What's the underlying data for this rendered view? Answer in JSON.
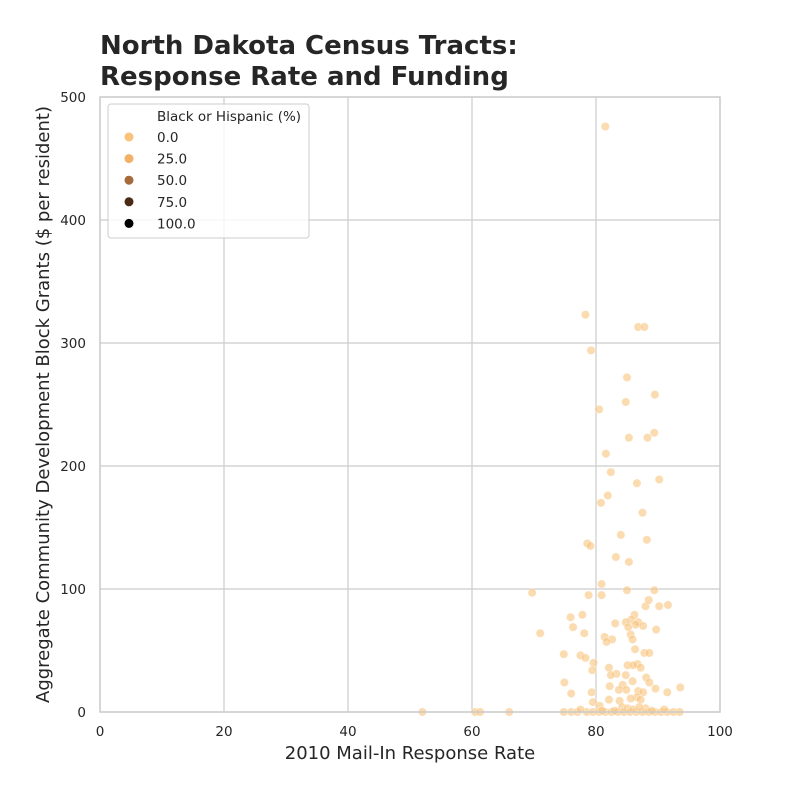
{
  "chart_data": {
    "type": "scatter",
    "title_line1": "North Dakota Census Tracts:",
    "title_line2": "Response Rate and Funding",
    "xlabel": "2010 Mail-In Response Rate",
    "ylabel": "Aggregate Community Development Block Grants ($ per resident)",
    "xlim": [
      0,
      100
    ],
    "ylim": [
      0,
      500
    ],
    "x_ticks": [
      "0",
      "20",
      "40",
      "60",
      "80",
      "100"
    ],
    "y_ticks": [
      "0",
      "100",
      "200",
      "300",
      "400",
      "500"
    ],
    "grid": true,
    "legend": {
      "title": "Black or Hispanic (%)",
      "placement": "top-left",
      "entries": [
        {
          "label": "0.0",
          "color": "#f9c37b"
        },
        {
          "label": "25.0",
          "color": "#f2b168"
        },
        {
          "label": "50.0",
          "color": "#a66b3a"
        },
        {
          "label": "75.0",
          "color": "#4a2a17"
        },
        {
          "label": "100.0",
          "color": "#000000"
        }
      ]
    },
    "point_color": "#f9c37b",
    "points": [
      [
        81.5,
        476
      ],
      [
        78.3,
        323
      ],
      [
        86.8,
        313
      ],
      [
        87.8,
        313
      ],
      [
        79.2,
        294
      ],
      [
        85.0,
        272
      ],
      [
        89.5,
        258
      ],
      [
        84.8,
        252
      ],
      [
        80.5,
        246
      ],
      [
        85.3,
        223
      ],
      [
        89.4,
        227
      ],
      [
        88.3,
        223
      ],
      [
        81.6,
        210
      ],
      [
        82.4,
        195
      ],
      [
        90.2,
        189
      ],
      [
        86.6,
        186
      ],
      [
        81.9,
        176
      ],
      [
        80.8,
        170
      ],
      [
        87.5,
        162
      ],
      [
        84.0,
        144
      ],
      [
        88.2,
        140
      ],
      [
        78.6,
        137
      ],
      [
        79.1,
        135
      ],
      [
        83.2,
        126
      ],
      [
        85.3,
        122
      ],
      [
        80.9,
        104
      ],
      [
        89.4,
        99
      ],
      [
        85.0,
        99
      ],
      [
        69.7,
        97
      ],
      [
        78.8,
        95
      ],
      [
        80.9,
        95
      ],
      [
        90.2,
        86
      ],
      [
        91.6,
        87
      ],
      [
        88.0,
        86
      ],
      [
        88.5,
        91
      ],
      [
        86.2,
        79
      ],
      [
        77.8,
        79
      ],
      [
        75.9,
        77
      ],
      [
        85.7,
        75
      ],
      [
        84.8,
        73
      ],
      [
        86.8,
        73
      ],
      [
        83.1,
        72
      ],
      [
        86.4,
        71
      ],
      [
        85.2,
        69
      ],
      [
        87.6,
        70
      ],
      [
        76.3,
        69
      ],
      [
        89.7,
        67
      ],
      [
        85.6,
        63
      ],
      [
        71.0,
        64
      ],
      [
        78.1,
        64
      ],
      [
        81.4,
        61
      ],
      [
        82.6,
        59
      ],
      [
        81.7,
        57
      ],
      [
        85.9,
        59
      ],
      [
        86.3,
        51
      ],
      [
        87.8,
        48
      ],
      [
        88.6,
        48
      ],
      [
        77.5,
        46
      ],
      [
        74.8,
        47
      ],
      [
        78.3,
        44
      ],
      [
        79.6,
        40
      ],
      [
        85.1,
        38
      ],
      [
        86.7,
        39
      ],
      [
        82.1,
        36
      ],
      [
        87.2,
        36
      ],
      [
        86.0,
        38
      ],
      [
        79.4,
        34
      ],
      [
        83.3,
        31
      ],
      [
        84.8,
        30
      ],
      [
        88.1,
        28
      ],
      [
        82.4,
        30
      ],
      [
        85.9,
        25
      ],
      [
        88.6,
        24
      ],
      [
        74.9,
        24
      ],
      [
        84.3,
        22
      ],
      [
        82.2,
        21
      ],
      [
        89.6,
        19
      ],
      [
        93.6,
        20
      ],
      [
        91.5,
        16
      ],
      [
        76.0,
        15
      ],
      [
        79.3,
        16
      ],
      [
        83.7,
        18
      ],
      [
        84.9,
        18
      ],
      [
        86.8,
        17
      ],
      [
        87.6,
        16
      ],
      [
        86.6,
        12
      ],
      [
        85.6,
        11
      ],
      [
        87.2,
        10
      ],
      [
        83.8,
        9
      ],
      [
        82.1,
        10
      ],
      [
        79.5,
        8
      ],
      [
        80.6,
        5
      ],
      [
        84.2,
        4
      ],
      [
        85.1,
        3
      ],
      [
        88.0,
        3
      ],
      [
        52.0,
        0
      ],
      [
        60.5,
        0
      ],
      [
        61.3,
        0
      ],
      [
        66.0,
        0
      ],
      [
        74.8,
        0
      ],
      [
        76.0,
        0
      ],
      [
        77.0,
        0
      ],
      [
        78.5,
        0
      ],
      [
        79.5,
        0
      ],
      [
        80.5,
        0
      ],
      [
        81.5,
        0
      ],
      [
        82.5,
        0
      ],
      [
        83.5,
        0
      ],
      [
        84.5,
        0
      ],
      [
        85.5,
        0
      ],
      [
        86.5,
        0
      ],
      [
        87.5,
        0
      ],
      [
        88.5,
        0
      ],
      [
        89.5,
        0
      ],
      [
        90.5,
        0
      ],
      [
        91.5,
        0
      ],
      [
        92.5,
        0
      ],
      [
        93.5,
        0
      ],
      [
        77.5,
        2
      ],
      [
        83.0,
        1
      ],
      [
        86.0,
        2
      ],
      [
        89.0,
        1
      ],
      [
        91.0,
        2
      ],
      [
        81.0,
        1
      ],
      [
        87.0,
        4
      ]
    ]
  }
}
